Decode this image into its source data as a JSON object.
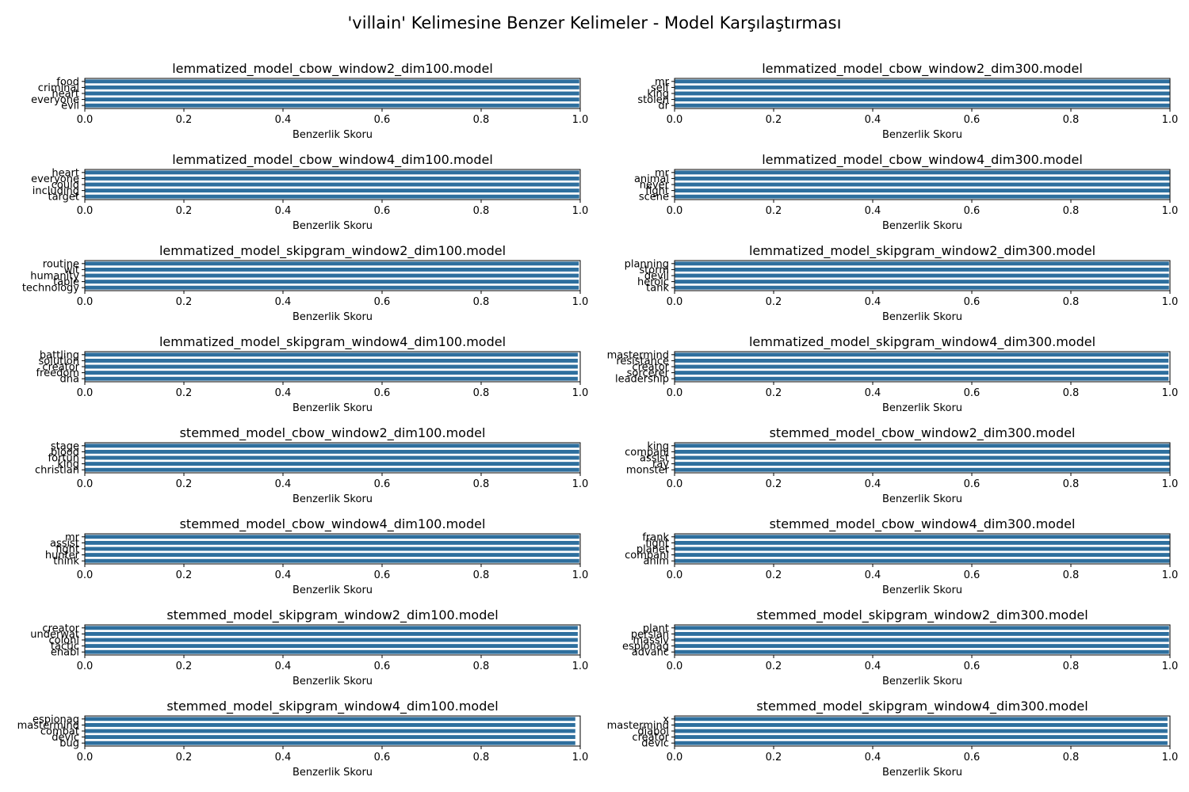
{
  "figure": {
    "title": "'villain' Kelimesine Benzer Kelimeler - Model Karşılaştırması"
  },
  "colors": {
    "bar": "#2e6f9e",
    "axis": "#000000",
    "background": "#ffffff"
  },
  "chart_data": [
    {
      "type": "bar",
      "orientation": "horizontal",
      "title": "lemmatized_model_cbow_window2_dim100.model",
      "xlabel": "Benzerlik Skoru",
      "ylabel": "",
      "xlim": [
        0,
        1.0
      ],
      "xticks": [
        "0.0",
        "0.2",
        "0.4",
        "0.6",
        "0.8",
        "1.0"
      ],
      "categories": [
        "food",
        "criminal",
        "heart",
        "everyone",
        "evil"
      ],
      "values": [
        0.999,
        0.999,
        0.999,
        0.999,
        0.999
      ]
    },
    {
      "type": "bar",
      "orientation": "horizontal",
      "title": "lemmatized_model_cbow_window2_dim300.model",
      "xlabel": "Benzerlik Skoru",
      "ylabel": "",
      "xlim": [
        0,
        1.0
      ],
      "xticks": [
        "0.0",
        "0.2",
        "0.4",
        "0.6",
        "0.8",
        "1.0"
      ],
      "categories": [
        "mr",
        "self",
        "king",
        "stolen",
        "dr"
      ],
      "values": [
        1.0,
        1.0,
        1.0,
        1.0,
        1.0
      ]
    },
    {
      "type": "bar",
      "orientation": "horizontal",
      "title": "lemmatized_model_cbow_window4_dim100.model",
      "xlabel": "Benzerlik Skoru",
      "ylabel": "",
      "xlim": [
        0,
        1.0
      ],
      "xticks": [
        "0.0",
        "0.2",
        "0.4",
        "0.6",
        "0.8",
        "1.0"
      ],
      "categories": [
        "heart",
        "everyone",
        "could",
        "including",
        "target"
      ],
      "values": [
        0.999,
        0.999,
        0.999,
        0.999,
        0.999
      ]
    },
    {
      "type": "bar",
      "orientation": "horizontal",
      "title": "lemmatized_model_cbow_window4_dim300.model",
      "xlabel": "Benzerlik Skoru",
      "ylabel": "",
      "xlim": [
        0,
        1.0
      ],
      "xticks": [
        "0.0",
        "0.2",
        "0.4",
        "0.6",
        "0.8",
        "1.0"
      ],
      "categories": [
        "mr",
        "animal",
        "never",
        "fight",
        "scene"
      ],
      "values": [
        1.0,
        1.0,
        1.0,
        1.0,
        1.0
      ]
    },
    {
      "type": "bar",
      "orientation": "horizontal",
      "title": "lemmatized_model_skipgram_window2_dim100.model",
      "xlabel": "Benzerlik Skoru",
      "ylabel": "",
      "xlim": [
        0,
        1.0
      ],
      "xticks": [
        "0.0",
        "0.2",
        "0.4",
        "0.6",
        "0.8",
        "1.0"
      ],
      "categories": [
        "routine",
        "wit",
        "humanity",
        "table",
        "technology"
      ],
      "values": [
        0.998,
        0.998,
        0.998,
        0.998,
        0.998
      ]
    },
    {
      "type": "bar",
      "orientation": "horizontal",
      "title": "lemmatized_model_skipgram_window2_dim300.model",
      "xlabel": "Benzerlik Skoru",
      "ylabel": "",
      "xlim": [
        0,
        1.0
      ],
      "xticks": [
        "0.0",
        "0.2",
        "0.4",
        "0.6",
        "0.8",
        "1.0"
      ],
      "categories": [
        "planning",
        "storm",
        "devil",
        "heroic",
        "tank"
      ],
      "values": [
        0.999,
        0.999,
        0.999,
        0.999,
        0.999
      ]
    },
    {
      "type": "bar",
      "orientation": "horizontal",
      "title": "lemmatized_model_skipgram_window4_dim100.model",
      "xlabel": "Benzerlik Skoru",
      "ylabel": "",
      "xlim": [
        0,
        1.0
      ],
      "xticks": [
        "0.0",
        "0.2",
        "0.4",
        "0.6",
        "0.8",
        "1.0"
      ],
      "categories": [
        "battling",
        "solution",
        "creator",
        "freedom",
        "dna"
      ],
      "values": [
        0.996,
        0.996,
        0.996,
        0.996,
        0.996
      ]
    },
    {
      "type": "bar",
      "orientation": "horizontal",
      "title": "lemmatized_model_skipgram_window4_dim300.model",
      "xlabel": "Benzerlik Skoru",
      "ylabel": "",
      "xlim": [
        0,
        1.0
      ],
      "xticks": [
        "0.0",
        "0.2",
        "0.4",
        "0.6",
        "0.8",
        "1.0"
      ],
      "categories": [
        "mastermind",
        "resistance",
        "creator",
        "sorcerer",
        "leadership"
      ],
      "values": [
        0.998,
        0.998,
        0.998,
        0.998,
        0.998
      ]
    },
    {
      "type": "bar",
      "orientation": "horizontal",
      "title": "stemmed_model_cbow_window2_dim100.model",
      "xlabel": "Benzerlik Skoru",
      "ylabel": "",
      "xlim": [
        0,
        1.0
      ],
      "xticks": [
        "0.0",
        "0.2",
        "0.4",
        "0.6",
        "0.8",
        "1.0"
      ],
      "categories": [
        "stage",
        "blood",
        "fortun",
        "king",
        "christian"
      ],
      "values": [
        0.999,
        0.999,
        0.999,
        0.999,
        0.999
      ]
    },
    {
      "type": "bar",
      "orientation": "horizontal",
      "title": "stemmed_model_cbow_window2_dim300.model",
      "xlabel": "Benzerlik Skoru",
      "ylabel": "",
      "xlim": [
        0,
        1.0
      ],
      "xticks": [
        "0.0",
        "0.2",
        "0.4",
        "0.6",
        "0.8",
        "1.0"
      ],
      "categories": [
        "king",
        "compani",
        "assist",
        "ray",
        "monster"
      ],
      "values": [
        1.0,
        1.0,
        1.0,
        1.0,
        1.0
      ]
    },
    {
      "type": "bar",
      "orientation": "horizontal",
      "title": "stemmed_model_cbow_window4_dim100.model",
      "xlabel": "Benzerlik Skoru",
      "ylabel": "",
      "xlim": [
        0,
        1.0
      ],
      "xticks": [
        "0.0",
        "0.2",
        "0.4",
        "0.6",
        "0.8",
        "1.0"
      ],
      "categories": [
        "mr",
        "assist",
        "fight",
        "hunter",
        "think"
      ],
      "values": [
        0.999,
        0.999,
        0.999,
        0.999,
        0.999
      ]
    },
    {
      "type": "bar",
      "orientation": "horizontal",
      "title": "stemmed_model_cbow_window4_dim300.model",
      "xlabel": "Benzerlik Skoru",
      "ylabel": "",
      "xlim": [
        0,
        1.0
      ],
      "xticks": [
        "0.0",
        "0.2",
        "0.4",
        "0.6",
        "0.8",
        "1.0"
      ],
      "categories": [
        "frank",
        "fight",
        "planet",
        "compani",
        "anim"
      ],
      "values": [
        1.0,
        1.0,
        1.0,
        1.0,
        1.0
      ]
    },
    {
      "type": "bar",
      "orientation": "horizontal",
      "title": "stemmed_model_skipgram_window2_dim100.model",
      "xlabel": "Benzerlik Skoru",
      "ylabel": "",
      "xlim": [
        0,
        1.0
      ],
      "xticks": [
        "0.0",
        "0.2",
        "0.4",
        "0.6",
        "0.8",
        "1.0"
      ],
      "categories": [
        "creator",
        "underwat",
        "coloni",
        "tactic",
        "enabl"
      ],
      "values": [
        0.996,
        0.996,
        0.996,
        0.996,
        0.996
      ]
    },
    {
      "type": "bar",
      "orientation": "horizontal",
      "title": "stemmed_model_skipgram_window2_dim300.model",
      "xlabel": "Benzerlik Skoru",
      "ylabel": "",
      "xlim": [
        0,
        1.0
      ],
      "xticks": [
        "0.0",
        "0.2",
        "0.4",
        "0.6",
        "0.8",
        "1.0"
      ],
      "categories": [
        "plant",
        "persian",
        "massiv",
        "espionag",
        "advanc"
      ],
      "values": [
        0.999,
        0.999,
        0.999,
        0.999,
        0.999
      ]
    },
    {
      "type": "bar",
      "orientation": "horizontal",
      "title": "stemmed_model_skipgram_window4_dim100.model",
      "xlabel": "Benzerlik Skoru",
      "ylabel": "",
      "xlim": [
        0,
        1.0
      ],
      "xticks": [
        "0.0",
        "0.2",
        "0.4",
        "0.6",
        "0.8",
        "1.0"
      ],
      "categories": [
        "espionag",
        "mastermind",
        "combat",
        "devic",
        "bug"
      ],
      "values": [
        0.991,
        0.991,
        0.991,
        0.991,
        0.991
      ]
    },
    {
      "type": "bar",
      "orientation": "horizontal",
      "title": "stemmed_model_skipgram_window4_dim300.model",
      "xlabel": "Benzerlik Skoru",
      "ylabel": "",
      "xlim": [
        0,
        1.0
      ],
      "xticks": [
        "0.0",
        "0.2",
        "0.4",
        "0.6",
        "0.8",
        "1.0"
      ],
      "categories": [
        "x",
        "mastermind",
        "diabol",
        "creator",
        "devic"
      ],
      "values": [
        0.996,
        0.996,
        0.996,
        0.996,
        0.996
      ]
    }
  ]
}
